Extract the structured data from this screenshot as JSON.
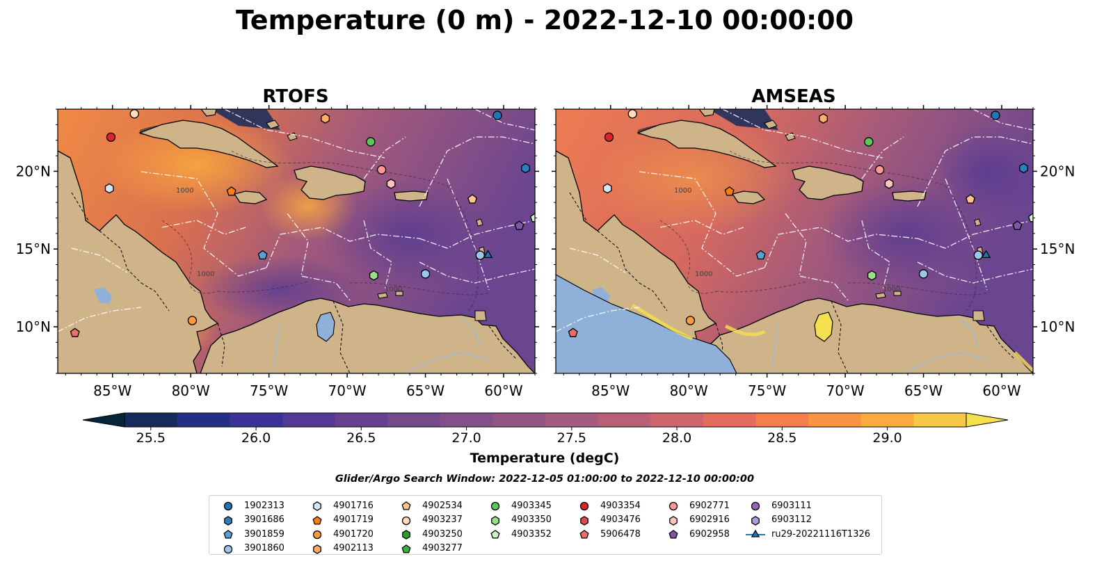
{
  "figure": {
    "title": "Temperature (0 m) - 2022-12-10 00:00:00",
    "colorbar_label": "Temperature (degC)",
    "search_window": "Glider/Argo Search Window: 2022-12-05 01:00:00 to 2022-12-10 00:00:00"
  },
  "panels": [
    {
      "title": "RTOFS"
    },
    {
      "title": "AMSEAS"
    }
  ],
  "map": {
    "lon_range": [
      -88.5,
      -58
    ],
    "lat_range": [
      7,
      24
    ],
    "lon_ticks": [
      {
        "value": -85,
        "label": "85°W"
      },
      {
        "value": -80,
        "label": "80°W"
      },
      {
        "value": -75,
        "label": "75°W"
      },
      {
        "value": -70,
        "label": "70°W"
      },
      {
        "value": -65,
        "label": "65°W"
      },
      {
        "value": -60,
        "label": "60°W"
      }
    ],
    "lat_ticks": [
      {
        "value": 20,
        "label": "20°N"
      },
      {
        "value": 15,
        "label": "15°N"
      },
      {
        "value": 10,
        "label": "10°N"
      }
    ],
    "land_color": "#cfb48a",
    "isobath_label": "1000"
  },
  "colorbar": {
    "min": 25.375,
    "max": 29.375,
    "step": 0.25,
    "ticks": [
      "25.5",
      "26.0",
      "26.5",
      "27.0",
      "27.5",
      "28.0",
      "28.5",
      "29.0"
    ],
    "tick_values": [
      25.5,
      26.0,
      26.5,
      27.0,
      27.5,
      28.0,
      28.5,
      29.0
    ],
    "colors": [
      "#06243a",
      "#142b5c",
      "#232f86",
      "#3a3296",
      "#523994",
      "#654190",
      "#744a8b",
      "#825088",
      "#935683",
      "#a55b7d",
      "#b95f76",
      "#cf646d",
      "#e46c5d",
      "#f47f4c",
      "#fa9440",
      "#fbaa3e",
      "#f8c847",
      "#f5e14f"
    ]
  },
  "legend": {
    "columns": [
      [
        {
          "label": "1902313",
          "marker": "circle",
          "color": "#1f77b4"
        },
        {
          "label": "3901686",
          "marker": "hexagon",
          "color": "#2a81c0"
        },
        {
          "label": "3901859",
          "marker": "pentagon",
          "color": "#5aa2d5"
        },
        {
          "label": "3901860",
          "marker": "circle",
          "color": "#9ec5ea"
        }
      ],
      [
        {
          "label": "4901716",
          "marker": "hexagon",
          "color": "#d4e6f7"
        },
        {
          "label": "4901719",
          "marker": "pentagon",
          "color": "#ff7f0e"
        },
        {
          "label": "4901720",
          "marker": "circle",
          "color": "#ff9a3c"
        },
        {
          "label": "4902113",
          "marker": "hexagon",
          "color": "#ffae6a"
        }
      ],
      [
        {
          "label": "4902534",
          "marker": "pentagon",
          "color": "#ffc58e"
        },
        {
          "label": "4903237",
          "marker": "circle",
          "color": "#ffddb8"
        },
        {
          "label": "4903250",
          "marker": "hexagon",
          "color": "#2ca02c"
        },
        {
          "label": "4903277",
          "marker": "pentagon",
          "color": "#3bb03b"
        }
      ],
      [
        {
          "label": "4903345",
          "marker": "circle",
          "color": "#5cc85c"
        },
        {
          "label": "4903350",
          "marker": "hexagon",
          "color": "#98df8a"
        },
        {
          "label": "4903352",
          "marker": "pentagon",
          "color": "#cdf3c4"
        }
      ],
      [
        {
          "label": "4903354",
          "marker": "circle",
          "color": "#d62728"
        },
        {
          "label": "4903476",
          "marker": "hexagon",
          "color": "#e04a4a"
        },
        {
          "label": "5906478",
          "marker": "pentagon",
          "color": "#ee6e6e"
        }
      ],
      [
        {
          "label": "6902771",
          "marker": "circle",
          "color": "#ff9896"
        },
        {
          "label": "6902916",
          "marker": "hexagon",
          "color": "#ffc4c2"
        },
        {
          "label": "6902958",
          "marker": "pentagon",
          "color": "#7d56a8"
        }
      ],
      [
        {
          "label": "6903111",
          "marker": "circle",
          "color": "#9467bd"
        },
        {
          "label": "6903112",
          "marker": "hexagon",
          "color": "#b39ad8"
        },
        {
          "label": "ru29-20221116T1326",
          "marker": "triangle-line",
          "color": "#1f77b4"
        }
      ]
    ]
  },
  "markers": [
    {
      "id": "1902313",
      "lon": -60.4,
      "lat": 23.6,
      "marker": "circle",
      "color": "#1f77b4"
    },
    {
      "id": "3901686",
      "lon": -58.6,
      "lat": 20.2,
      "marker": "hexagon",
      "color": "#2a81c0"
    },
    {
      "id": "3901859",
      "lon": -75.4,
      "lat": 14.6,
      "marker": "pentagon",
      "color": "#5aa2d5"
    },
    {
      "id": "3901860",
      "lon": -65.0,
      "lat": 13.4,
      "marker": "circle",
      "color": "#9ec5ea"
    },
    {
      "id": "3901860b",
      "lon": -61.5,
      "lat": 14.6,
      "marker": "circle",
      "color": "#9ec5ea"
    },
    {
      "id": "4901716",
      "lon": -85.2,
      "lat": 18.9,
      "marker": "hexagon",
      "color": "#d4e6f7"
    },
    {
      "id": "4901719",
      "lon": -77.4,
      "lat": 18.7,
      "marker": "pentagon",
      "color": "#ff7f0e"
    },
    {
      "id": "4901720",
      "lon": -79.9,
      "lat": 10.4,
      "marker": "circle",
      "color": "#ff9a3c"
    },
    {
      "id": "4902113",
      "lon": -71.4,
      "lat": 23.4,
      "marker": "hexagon",
      "color": "#ffae6a"
    },
    {
      "id": "4902534",
      "lon": -62.0,
      "lat": 18.2,
      "marker": "pentagon",
      "color": "#ffc58e"
    },
    {
      "id": "4903237",
      "lon": -83.6,
      "lat": 23.7,
      "marker": "circle",
      "color": "#ffddb8"
    },
    {
      "id": "4903345",
      "lon": -68.5,
      "lat": 21.9,
      "marker": "circle",
      "color": "#5cc85c"
    },
    {
      "id": "4903350",
      "lon": -68.3,
      "lat": 13.3,
      "marker": "hexagon",
      "color": "#98df8a"
    },
    {
      "id": "4903352",
      "lon": -58.0,
      "lat": 17.0,
      "marker": "pentagon",
      "color": "#cdf3c4"
    },
    {
      "id": "4903354",
      "lon": -85.1,
      "lat": 22.2,
      "marker": "circle",
      "color": "#d62728"
    },
    {
      "id": "5906478",
      "lon": -87.4,
      "lat": 9.6,
      "marker": "pentagon",
      "color": "#ee6e6e"
    },
    {
      "id": "6902771",
      "lon": -67.8,
      "lat": 20.1,
      "marker": "circle",
      "color": "#ff9896"
    },
    {
      "id": "6902916",
      "lon": -67.2,
      "lat": 19.2,
      "marker": "hexagon",
      "color": "#ffc4c2"
    },
    {
      "id": "6902958",
      "lon": -59.0,
      "lat": 16.5,
      "marker": "pentagon",
      "color": "#7d56a8"
    },
    {
      "id": "ru29-20221116T1326",
      "lon": -61.0,
      "lat": 14.6,
      "marker": "triangle",
      "color": "#1f77b4"
    }
  ]
}
